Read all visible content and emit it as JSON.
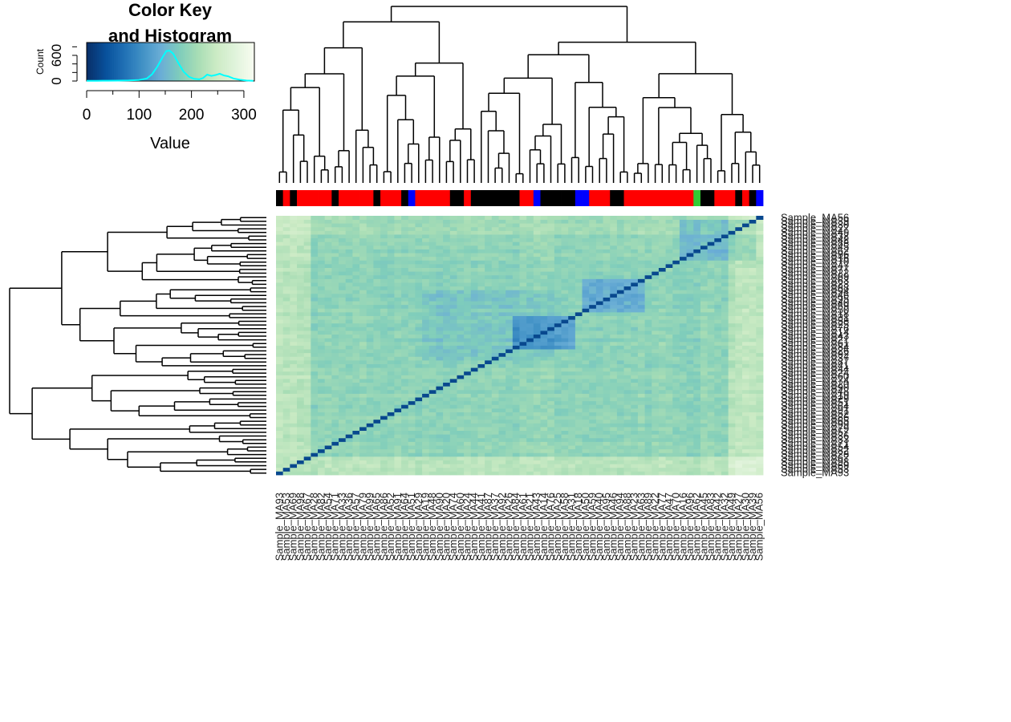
{
  "color_key": {
    "title_line1": "Color Key",
    "title_line2": "and Histogram",
    "ylabel": "Count",
    "xlabel": "Value",
    "x_ticks": [
      0,
      100,
      200,
      300
    ],
    "y_ticks": [
      0,
      600
    ],
    "x_range": [
      0,
      320
    ],
    "y_range": [
      0,
      900
    ],
    "colorscale": [
      "#08306b",
      "#08519c",
      "#2171b5",
      "#4292c6",
      "#6baed6",
      "#7fcdbb",
      "#a8ddb5",
      "#ccebc5",
      "#e0f3db",
      "#f7fcf0"
    ],
    "histogram_color": "#00ffff",
    "histogram": [
      [
        0,
        5
      ],
      [
        20,
        6
      ],
      [
        40,
        8
      ],
      [
        60,
        10
      ],
      [
        80,
        14
      ],
      [
        100,
        25
      ],
      [
        115,
        60
      ],
      [
        125,
        160
      ],
      [
        135,
        340
      ],
      [
        145,
        560
      ],
      [
        152,
        700
      ],
      [
        158,
        710
      ],
      [
        165,
        640
      ],
      [
        175,
        420
      ],
      [
        185,
        220
      ],
      [
        195,
        100
      ],
      [
        205,
        50
      ],
      [
        215,
        40
      ],
      [
        222,
        70
      ],
      [
        230,
        150
      ],
      [
        238,
        120
      ],
      [
        246,
        140
      ],
      [
        254,
        170
      ],
      [
        262,
        130
      ],
      [
        270,
        110
      ],
      [
        280,
        60
      ],
      [
        292,
        30
      ],
      [
        305,
        12
      ],
      [
        318,
        5
      ]
    ]
  },
  "chart_data": {
    "type": "heatmap",
    "samples": [
      "Sample_MA93",
      "Sample_MA53",
      "Sample_MA69",
      "Sample_MA98",
      "Sample_MA67",
      "Sample_MA28",
      "Sample_MA82",
      "Sample_MA54",
      "Sample_MA71",
      "Sample_MA33",
      "Sample_MA36",
      "Sample_MA57",
      "Sample_MA79",
      "Sample_MA99",
      "Sample_MA65",
      "Sample_MA86",
      "Sample_MA52",
      "Sample_MA91",
      "Sample_MA64",
      "Sample_MA51",
      "Sample_MA29",
      "Sample_MA19",
      "Sample_MA48",
      "Sample_MA90",
      "Sample_MA20",
      "Sample_MA74",
      "Sample_MA60",
      "Sample_MA24",
      "Sample_MA44",
      "Sample_MA41",
      "Sample_MA87",
      "Sample_MA37",
      "Sample_MA92",
      "Sample_MA26",
      "Sample_MA84",
      "Sample_MA61",
      "Sample_MA21",
      "Sample_MA43",
      "Sample_MA14",
      "Sample_MA76",
      "Sample_MA25",
      "Sample_MA58",
      "Sample_MA31",
      "Sample_MA18",
      "Sample_MA50",
      "Sample_MA59",
      "Sample_MA40",
      "Sample_MA95",
      "Sample_MA46",
      "Sample_MA94",
      "Sample_MA88",
      "Sample_MA23",
      "Sample_MA63",
      "Sample_MA89",
      "Sample_MA22",
      "Sample_MA77",
      "Sample_MA47",
      "Sample_MA70",
      "Sample_MA16",
      "Sample_MA96",
      "Sample_MA62",
      "Sample_MA45",
      "Sample_MA83",
      "Sample_MA42",
      "Sample_MA32",
      "Sample_MA49",
      "Sample_MA27",
      "Sample_MA30",
      "Sample_MA39",
      "Sample_MA56"
    ],
    "side_colors": [
      "black",
      "red",
      "black",
      "red",
      "red",
      "red",
      "red",
      "red",
      "black",
      "red",
      "red",
      "red",
      "red",
      "red",
      "black",
      "red",
      "red",
      "red",
      "black",
      "blue",
      "red",
      "red",
      "red",
      "red",
      "red",
      "black",
      "black",
      "red",
      "black",
      "black",
      "black",
      "black",
      "black",
      "black",
      "black",
      "red",
      "red",
      "blue",
      "black",
      "black",
      "black",
      "black",
      "black",
      "blue",
      "blue",
      "red",
      "red",
      "red",
      "black",
      "black",
      "red",
      "red",
      "red",
      "red",
      "red",
      "red",
      "red",
      "red",
      "red",
      "red",
      "green",
      "black",
      "black",
      "red",
      "red",
      "red",
      "black",
      "red",
      "black",
      "blue"
    ],
    "value_range": [
      0,
      320
    ]
  }
}
